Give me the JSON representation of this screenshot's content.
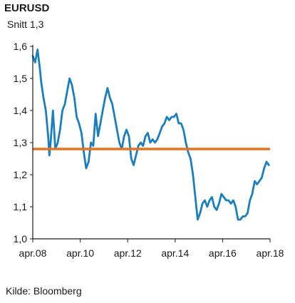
{
  "chart_data": {
    "type": "line",
    "title": "EURUSD",
    "subtitle": "Snitt 1,3",
    "source": "Kilde: Bloomberg",
    "xlim": [
      2008.25,
      2018.25
    ],
    "ylim": [
      1.0,
      1.6
    ],
    "y_ticks": [
      {
        "value": 1.0,
        "label": "1,0"
      },
      {
        "value": 1.1,
        "label": "1,1"
      },
      {
        "value": 1.2,
        "label": "1,2"
      },
      {
        "value": 1.3,
        "label": "1,3"
      },
      {
        "value": 1.4,
        "label": "1,4"
      },
      {
        "value": 1.5,
        "label": "1,5"
      },
      {
        "value": 1.6,
        "label": "1,6"
      }
    ],
    "x_ticks": [
      {
        "value": 2008.25,
        "label": "apr.08"
      },
      {
        "value": 2010.25,
        "label": "apr.10"
      },
      {
        "value": 2012.25,
        "label": "apr.12"
      },
      {
        "value": 2014.25,
        "label": "apr.14"
      },
      {
        "value": 2016.25,
        "label": "apr.16"
      },
      {
        "value": 2018.25,
        "label": "apr.18"
      }
    ],
    "average_line": {
      "value": 1.28,
      "color": "#e8731e"
    },
    "series_color": "#1a7fbf",
    "series": [
      {
        "x": [
          2008.25,
          2008.35,
          2008.45,
          2008.55,
          2008.6,
          2008.7,
          2008.8,
          2008.9,
          2008.95,
          2009.0,
          2009.1,
          2009.2,
          2009.3,
          2009.4,
          2009.5,
          2009.6,
          2009.7,
          2009.8,
          2009.9,
          2010.0,
          2010.1,
          2010.2,
          2010.3,
          2010.4,
          2010.5,
          2010.6,
          2010.7,
          2010.8,
          2010.9,
          2011.0,
          2011.1,
          2011.2,
          2011.3,
          2011.4,
          2011.5,
          2011.6,
          2011.7,
          2011.8,
          2011.9,
          2012.0,
          2012.1,
          2012.2,
          2012.3,
          2012.4,
          2012.5,
          2012.6,
          2012.7,
          2012.8,
          2012.9,
          2013.0,
          2013.1,
          2013.2,
          2013.3,
          2013.4,
          2013.5,
          2013.6,
          2013.7,
          2013.8,
          2013.9,
          2014.0,
          2014.1,
          2014.2,
          2014.3,
          2014.4,
          2014.5,
          2014.6,
          2014.7,
          2014.8,
          2014.9,
          2015.0,
          2015.1,
          2015.2,
          2015.3,
          2015.4,
          2015.5,
          2015.6,
          2015.7,
          2015.8,
          2015.9,
          2016.0,
          2016.1,
          2016.2,
          2016.3,
          2016.4,
          2016.5,
          2016.6,
          2016.7,
          2016.8,
          2016.9,
          2017.0,
          2017.1,
          2017.2,
          2017.3,
          2017.4,
          2017.5,
          2017.6,
          2017.7,
          2017.8,
          2017.9,
          2018.0,
          2018.1,
          2018.2
        ],
        "values": [
          1.57,
          1.55,
          1.59,
          1.53,
          1.49,
          1.44,
          1.4,
          1.32,
          1.26,
          1.3,
          1.4,
          1.28,
          1.3,
          1.34,
          1.4,
          1.42,
          1.46,
          1.5,
          1.48,
          1.44,
          1.38,
          1.36,
          1.33,
          1.27,
          1.22,
          1.24,
          1.3,
          1.29,
          1.39,
          1.32,
          1.36,
          1.4,
          1.44,
          1.47,
          1.44,
          1.42,
          1.38,
          1.34,
          1.3,
          1.28,
          1.32,
          1.34,
          1.32,
          1.25,
          1.23,
          1.26,
          1.29,
          1.3,
          1.29,
          1.32,
          1.33,
          1.3,
          1.31,
          1.3,
          1.31,
          1.33,
          1.35,
          1.36,
          1.38,
          1.37,
          1.38,
          1.38,
          1.39,
          1.36,
          1.36,
          1.34,
          1.3,
          1.27,
          1.25,
          1.2,
          1.13,
          1.06,
          1.08,
          1.11,
          1.12,
          1.1,
          1.12,
          1.13,
          1.1,
          1.09,
          1.11,
          1.14,
          1.13,
          1.12,
          1.12,
          1.11,
          1.12,
          1.1,
          1.06,
          1.06,
          1.07,
          1.07,
          1.08,
          1.12,
          1.14,
          1.18,
          1.17,
          1.18,
          1.19,
          1.22,
          1.24,
          1.23
        ]
      }
    ]
  }
}
